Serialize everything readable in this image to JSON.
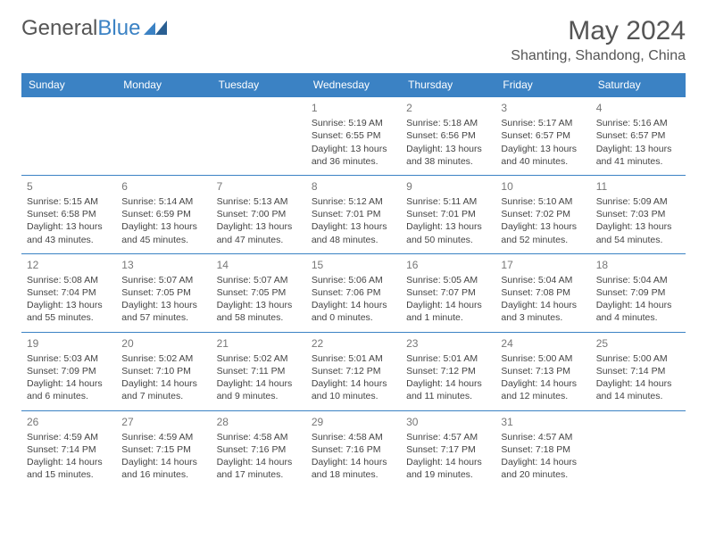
{
  "logo": {
    "part1": "General",
    "part2": "Blue"
  },
  "title": "May 2024",
  "location": "Shanting, Shandong, China",
  "colors": {
    "header_bg": "#3b82c4",
    "header_text": "#ffffff",
    "border": "#3b82c4",
    "body_text": "#444444",
    "daynum": "#777777",
    "title_text": "#555555"
  },
  "day_headers": [
    "Sunday",
    "Monday",
    "Tuesday",
    "Wednesday",
    "Thursday",
    "Friday",
    "Saturday"
  ],
  "weeks": [
    [
      {
        "blank": true
      },
      {
        "blank": true
      },
      {
        "blank": true
      },
      {
        "day": "1",
        "sunrise": "Sunrise: 5:19 AM",
        "sunset": "Sunset: 6:55 PM",
        "daylight": "Daylight: 13 hours and 36 minutes."
      },
      {
        "day": "2",
        "sunrise": "Sunrise: 5:18 AM",
        "sunset": "Sunset: 6:56 PM",
        "daylight": "Daylight: 13 hours and 38 minutes."
      },
      {
        "day": "3",
        "sunrise": "Sunrise: 5:17 AM",
        "sunset": "Sunset: 6:57 PM",
        "daylight": "Daylight: 13 hours and 40 minutes."
      },
      {
        "day": "4",
        "sunrise": "Sunrise: 5:16 AM",
        "sunset": "Sunset: 6:57 PM",
        "daylight": "Daylight: 13 hours and 41 minutes."
      }
    ],
    [
      {
        "day": "5",
        "sunrise": "Sunrise: 5:15 AM",
        "sunset": "Sunset: 6:58 PM",
        "daylight": "Daylight: 13 hours and 43 minutes."
      },
      {
        "day": "6",
        "sunrise": "Sunrise: 5:14 AM",
        "sunset": "Sunset: 6:59 PM",
        "daylight": "Daylight: 13 hours and 45 minutes."
      },
      {
        "day": "7",
        "sunrise": "Sunrise: 5:13 AM",
        "sunset": "Sunset: 7:00 PM",
        "daylight": "Daylight: 13 hours and 47 minutes."
      },
      {
        "day": "8",
        "sunrise": "Sunrise: 5:12 AM",
        "sunset": "Sunset: 7:01 PM",
        "daylight": "Daylight: 13 hours and 48 minutes."
      },
      {
        "day": "9",
        "sunrise": "Sunrise: 5:11 AM",
        "sunset": "Sunset: 7:01 PM",
        "daylight": "Daylight: 13 hours and 50 minutes."
      },
      {
        "day": "10",
        "sunrise": "Sunrise: 5:10 AM",
        "sunset": "Sunset: 7:02 PM",
        "daylight": "Daylight: 13 hours and 52 minutes."
      },
      {
        "day": "11",
        "sunrise": "Sunrise: 5:09 AM",
        "sunset": "Sunset: 7:03 PM",
        "daylight": "Daylight: 13 hours and 54 minutes."
      }
    ],
    [
      {
        "day": "12",
        "sunrise": "Sunrise: 5:08 AM",
        "sunset": "Sunset: 7:04 PM",
        "daylight": "Daylight: 13 hours and 55 minutes."
      },
      {
        "day": "13",
        "sunrise": "Sunrise: 5:07 AM",
        "sunset": "Sunset: 7:05 PM",
        "daylight": "Daylight: 13 hours and 57 minutes."
      },
      {
        "day": "14",
        "sunrise": "Sunrise: 5:07 AM",
        "sunset": "Sunset: 7:05 PM",
        "daylight": "Daylight: 13 hours and 58 minutes."
      },
      {
        "day": "15",
        "sunrise": "Sunrise: 5:06 AM",
        "sunset": "Sunset: 7:06 PM",
        "daylight": "Daylight: 14 hours and 0 minutes."
      },
      {
        "day": "16",
        "sunrise": "Sunrise: 5:05 AM",
        "sunset": "Sunset: 7:07 PM",
        "daylight": "Daylight: 14 hours and 1 minute."
      },
      {
        "day": "17",
        "sunrise": "Sunrise: 5:04 AM",
        "sunset": "Sunset: 7:08 PM",
        "daylight": "Daylight: 14 hours and 3 minutes."
      },
      {
        "day": "18",
        "sunrise": "Sunrise: 5:04 AM",
        "sunset": "Sunset: 7:09 PM",
        "daylight": "Daylight: 14 hours and 4 minutes."
      }
    ],
    [
      {
        "day": "19",
        "sunrise": "Sunrise: 5:03 AM",
        "sunset": "Sunset: 7:09 PM",
        "daylight": "Daylight: 14 hours and 6 minutes."
      },
      {
        "day": "20",
        "sunrise": "Sunrise: 5:02 AM",
        "sunset": "Sunset: 7:10 PM",
        "daylight": "Daylight: 14 hours and 7 minutes."
      },
      {
        "day": "21",
        "sunrise": "Sunrise: 5:02 AM",
        "sunset": "Sunset: 7:11 PM",
        "daylight": "Daylight: 14 hours and 9 minutes."
      },
      {
        "day": "22",
        "sunrise": "Sunrise: 5:01 AM",
        "sunset": "Sunset: 7:12 PM",
        "daylight": "Daylight: 14 hours and 10 minutes."
      },
      {
        "day": "23",
        "sunrise": "Sunrise: 5:01 AM",
        "sunset": "Sunset: 7:12 PM",
        "daylight": "Daylight: 14 hours and 11 minutes."
      },
      {
        "day": "24",
        "sunrise": "Sunrise: 5:00 AM",
        "sunset": "Sunset: 7:13 PM",
        "daylight": "Daylight: 14 hours and 12 minutes."
      },
      {
        "day": "25",
        "sunrise": "Sunrise: 5:00 AM",
        "sunset": "Sunset: 7:14 PM",
        "daylight": "Daylight: 14 hours and 14 minutes."
      }
    ],
    [
      {
        "day": "26",
        "sunrise": "Sunrise: 4:59 AM",
        "sunset": "Sunset: 7:14 PM",
        "daylight": "Daylight: 14 hours and 15 minutes."
      },
      {
        "day": "27",
        "sunrise": "Sunrise: 4:59 AM",
        "sunset": "Sunset: 7:15 PM",
        "daylight": "Daylight: 14 hours and 16 minutes."
      },
      {
        "day": "28",
        "sunrise": "Sunrise: 4:58 AM",
        "sunset": "Sunset: 7:16 PM",
        "daylight": "Daylight: 14 hours and 17 minutes."
      },
      {
        "day": "29",
        "sunrise": "Sunrise: 4:58 AM",
        "sunset": "Sunset: 7:16 PM",
        "daylight": "Daylight: 14 hours and 18 minutes."
      },
      {
        "day": "30",
        "sunrise": "Sunrise: 4:57 AM",
        "sunset": "Sunset: 7:17 PM",
        "daylight": "Daylight: 14 hours and 19 minutes."
      },
      {
        "day": "31",
        "sunrise": "Sunrise: 4:57 AM",
        "sunset": "Sunset: 7:18 PM",
        "daylight": "Daylight: 14 hours and 20 minutes."
      },
      {
        "blank": true
      }
    ]
  ]
}
